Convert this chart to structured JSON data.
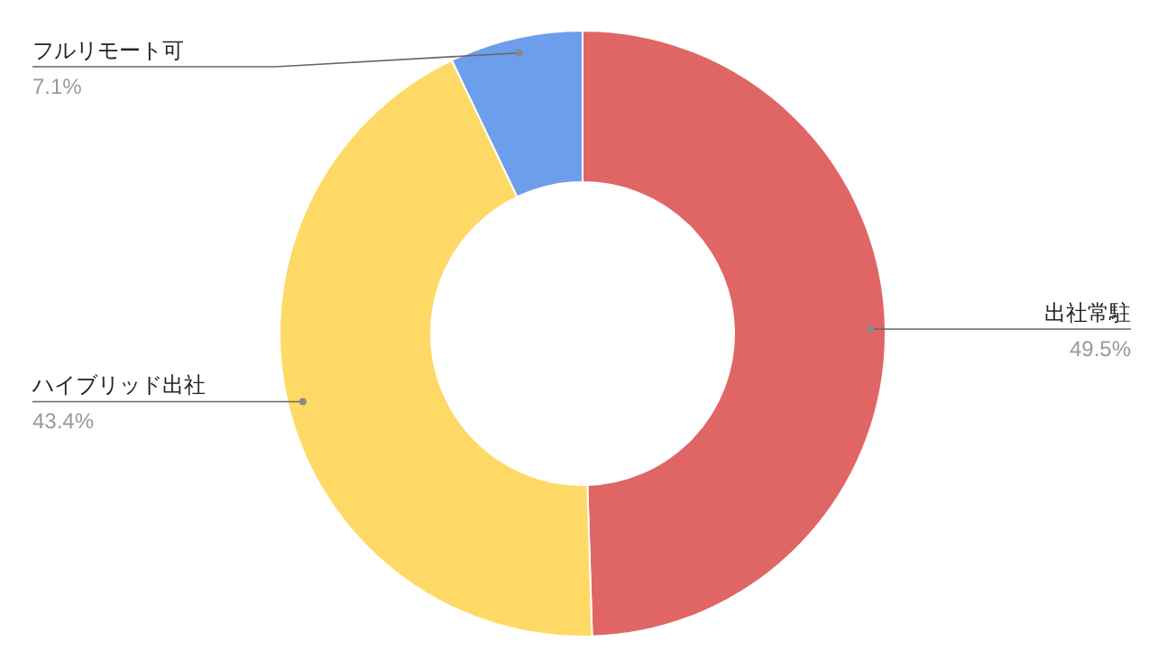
{
  "chart_data": {
    "type": "donut",
    "categories": [
      "出社常駐",
      "ハイブリッド出社",
      "フルリモート可"
    ],
    "values": [
      49.5,
      43.4,
      7.1
    ],
    "colors": [
      "#e06666",
      "#ffd966",
      "#6d9eeb"
    ],
    "value_labels": [
      "49.5%",
      "43.4%",
      "7.1%"
    ]
  }
}
